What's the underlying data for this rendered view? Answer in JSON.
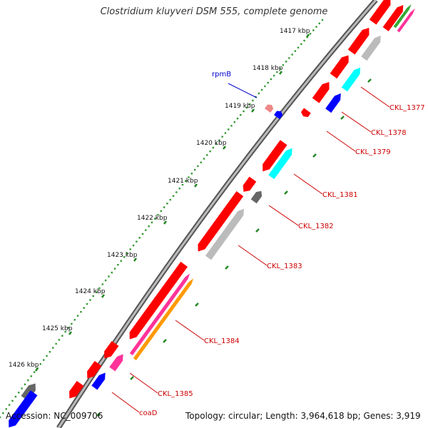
{
  "title": "Clostridium kluyveri DSM 555, complete genome",
  "accession": "Accession: NC_009706",
  "summary": "Topology: circular; Length: 3,964,618 bp; Genes: 3,919",
  "ticks": [
    {
      "label": "1417 kbp"
    },
    {
      "label": "1418 kbp"
    },
    {
      "label": "1419 kbp"
    },
    {
      "label": "1420 kbp"
    },
    {
      "label": "1421 kbp"
    },
    {
      "label": "1422 kbp"
    },
    {
      "label": "1423 kbp"
    },
    {
      "label": "1424 kbp"
    },
    {
      "label": "1425 kbp"
    },
    {
      "label": "1426 kbp"
    }
  ],
  "gene_labels": [
    {
      "name": "rpmB",
      "color": "#0000cc"
    },
    {
      "name": "CKL_1377",
      "color": "#cc0000"
    },
    {
      "name": "CKL_1378",
      "color": "#cc0000"
    },
    {
      "name": "CKL_1379",
      "color": "#cc0000"
    },
    {
      "name": "CKL_1381",
      "color": "#cc0000"
    },
    {
      "name": "CKL_1382",
      "color": "#cc0000"
    },
    {
      "name": "CKL_1383",
      "color": "#cc0000"
    },
    {
      "name": "CKL_1384",
      "color": "#cc0000"
    },
    {
      "name": "CKL_1385",
      "color": "#cc0000"
    },
    {
      "name": "coaD",
      "color": "#cc0000"
    }
  ],
  "colors": {
    "backbone": "#888888",
    "gene_red": "#ff0000",
    "gene_blue": "#0000ff",
    "gene_cyan": "#00ffff",
    "gene_gray": "#bbbbbb",
    "gene_darkgray": "#666666",
    "gene_orange": "#ff9900",
    "gene_magenta": "#ff3399",
    "gene_pink": "#ee8888",
    "dots": "#339933",
    "tick": "#339933"
  }
}
